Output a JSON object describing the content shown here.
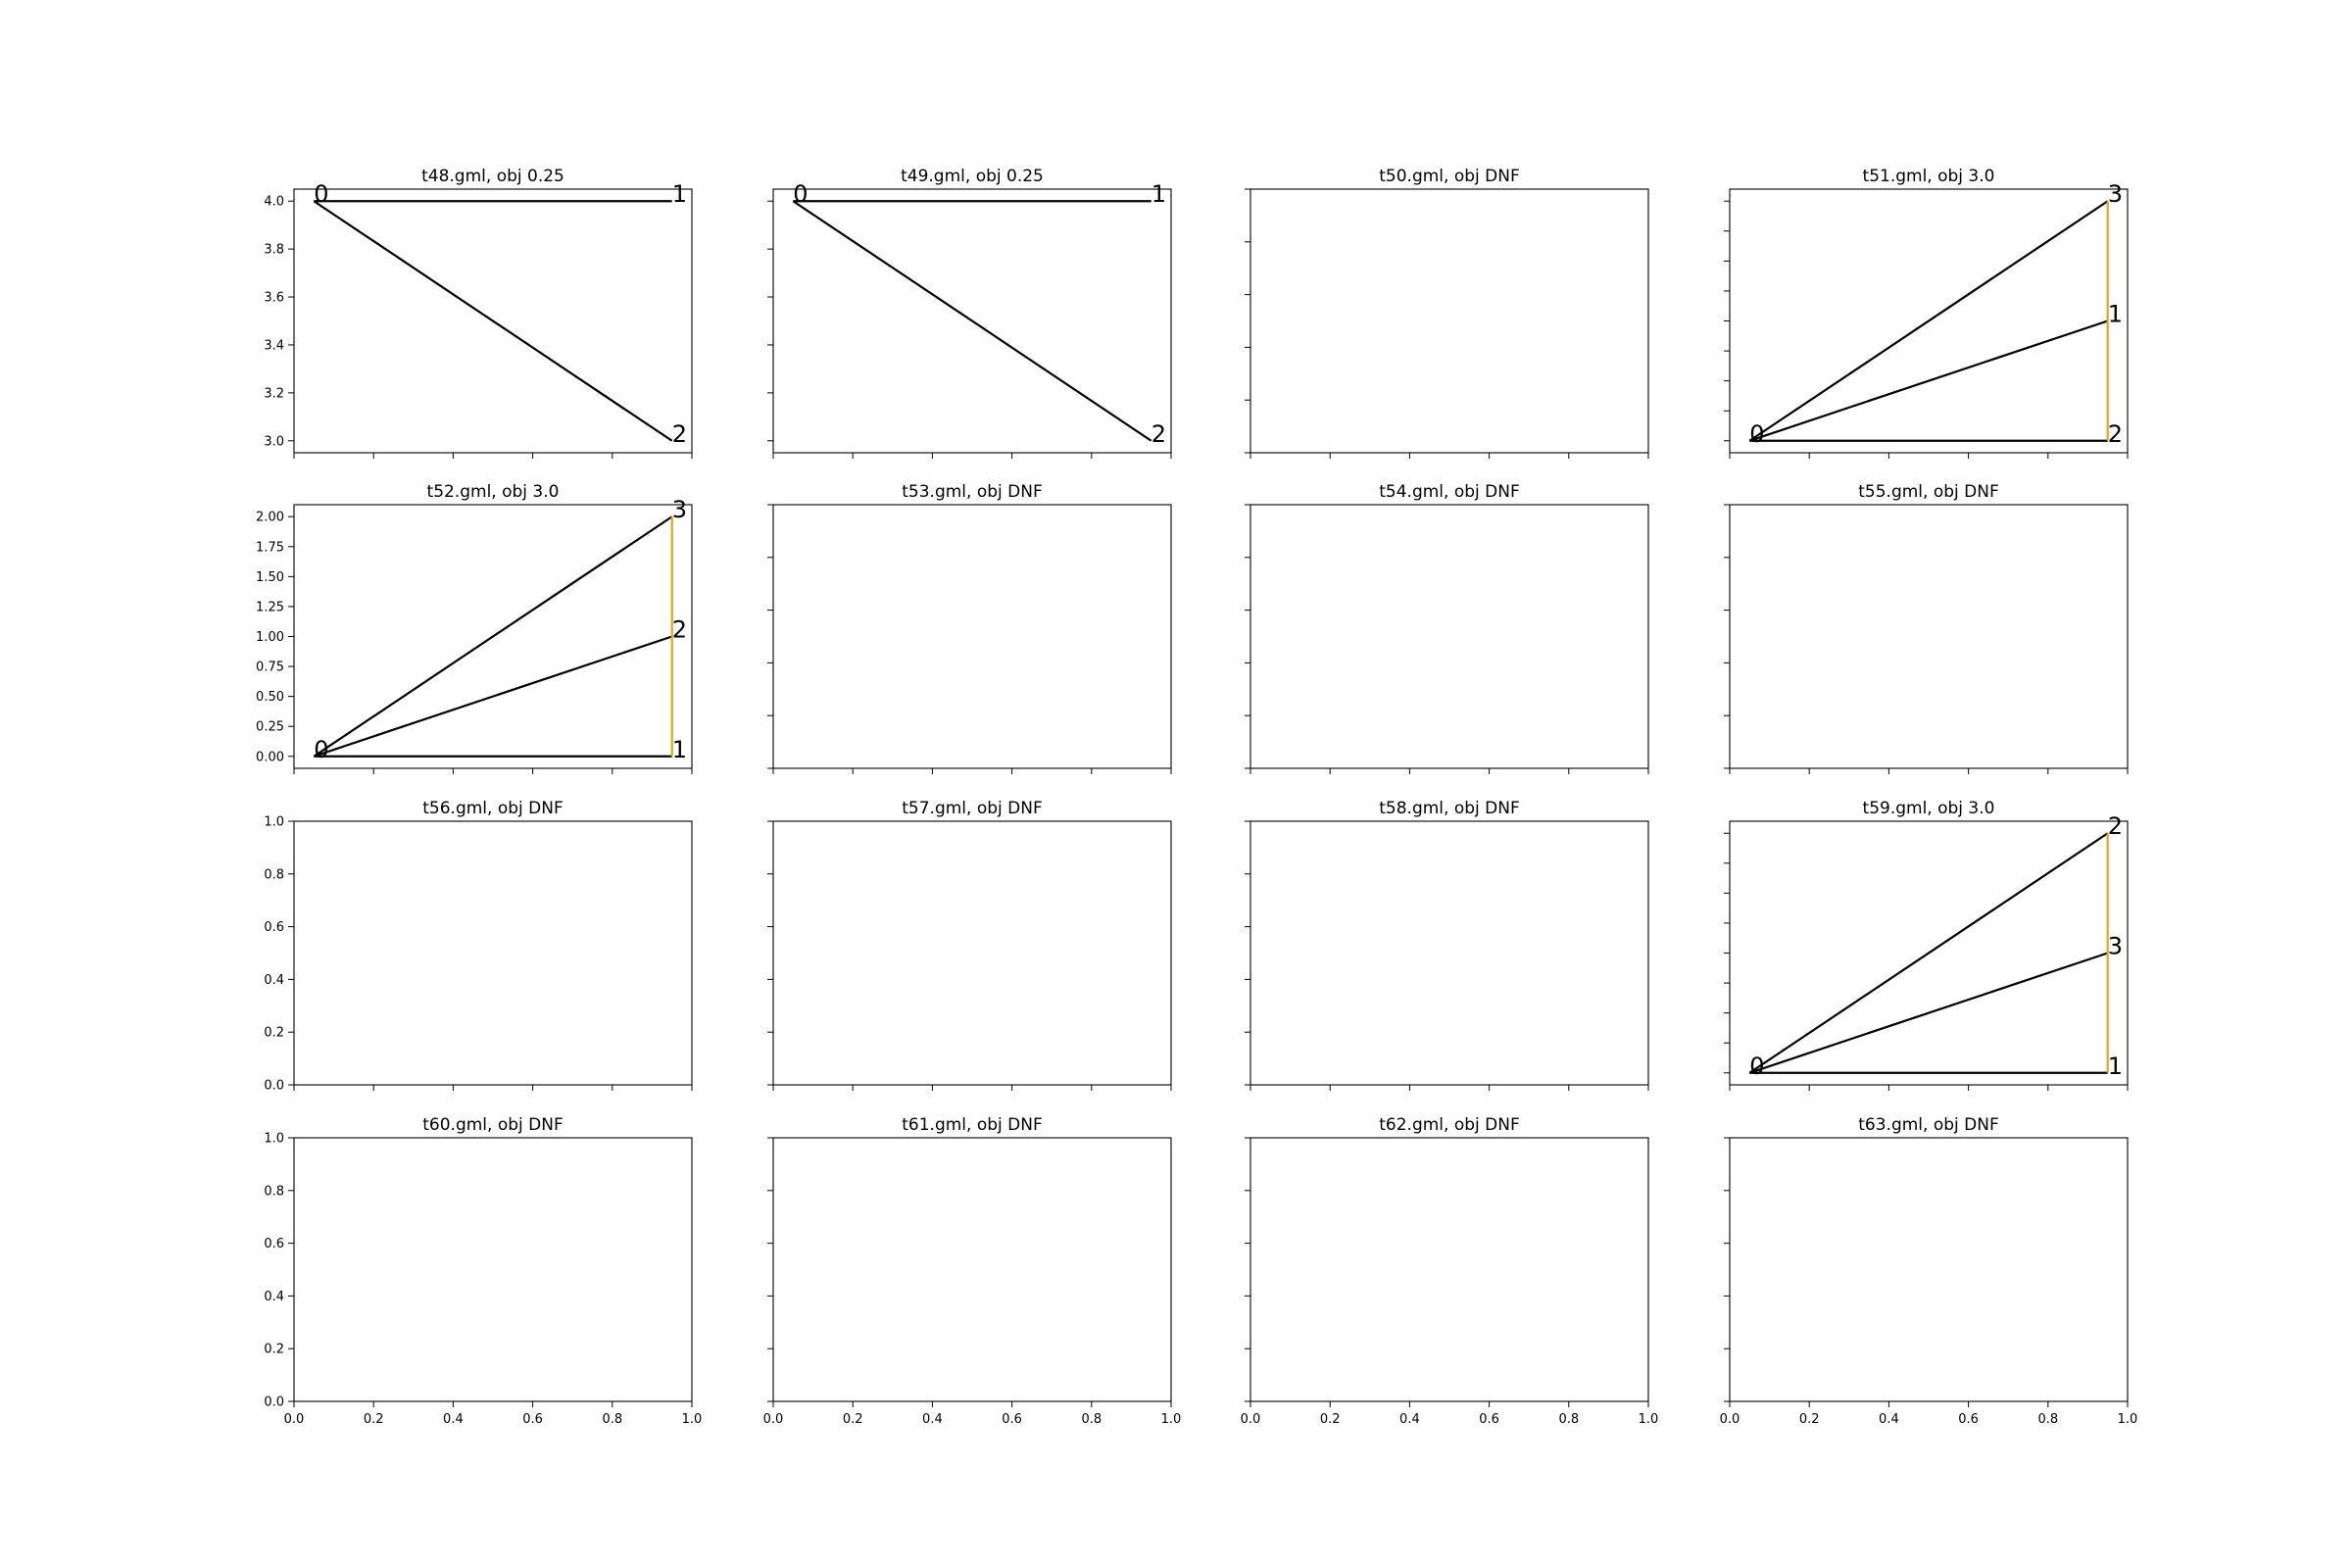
{
  "colors": {
    "edge": "#000000",
    "highlight": "#e8a317",
    "background": "#ffffff"
  },
  "chart_data": [
    {
      "type": "line",
      "title": "t48.gml, obj 0.25",
      "xlim": [
        0,
        1
      ],
      "ylim": [
        2.95,
        4.05
      ],
      "xticks": [
        "0.0",
        "0.2",
        "0.4",
        "0.6",
        "0.8",
        "1.0"
      ],
      "show_xticklabels": false,
      "yticks": [
        "3.0",
        "3.2",
        "3.4",
        "3.6",
        "3.8",
        "4.0"
      ],
      "show_yticklabels": true,
      "nodes": [
        {
          "label": "0",
          "x": 0.05,
          "y": 4.0
        },
        {
          "label": "1",
          "x": 0.95,
          "y": 4.0
        },
        {
          "label": "2",
          "x": 0.95,
          "y": 3.0
        }
      ],
      "edges": [
        {
          "from": 0,
          "to": 1,
          "highlight": false
        },
        {
          "from": 0,
          "to": 2,
          "highlight": false
        }
      ]
    },
    {
      "type": "line",
      "title": "t49.gml, obj 0.25",
      "xlim": [
        0,
        1
      ],
      "ylim": [
        2.95,
        4.05
      ],
      "xticks": [
        "0.0",
        "0.2",
        "0.4",
        "0.6",
        "0.8",
        "1.0"
      ],
      "show_xticklabels": false,
      "yticks": [
        "3.0",
        "3.2",
        "3.4",
        "3.6",
        "3.8",
        "4.0"
      ],
      "show_yticklabels": false,
      "nodes": [
        {
          "label": "0",
          "x": 0.05,
          "y": 4.0
        },
        {
          "label": "1",
          "x": 0.95,
          "y": 4.0
        },
        {
          "label": "2",
          "x": 0.95,
          "y": 3.0
        }
      ],
      "edges": [
        {
          "from": 0,
          "to": 1,
          "highlight": false
        },
        {
          "from": 0,
          "to": 2,
          "highlight": false
        }
      ]
    },
    {
      "type": "line",
      "title": "t50.gml, obj DNF",
      "xlim": [
        0,
        1
      ],
      "ylim": [
        0,
        1
      ],
      "xticks": [
        "0.0",
        "0.2",
        "0.4",
        "0.6",
        "0.8",
        "1.0"
      ],
      "show_xticklabels": false,
      "yticks": [
        "0.0",
        "0.2",
        "0.4",
        "0.6",
        "0.8",
        "1.0"
      ],
      "show_yticklabels": false,
      "nodes": [],
      "edges": []
    },
    {
      "type": "line",
      "title": "t51.gml, obj 3.0",
      "xlim": [
        0,
        1
      ],
      "ylim": [
        -0.1,
        2.1
      ],
      "xticks": [
        "0.0",
        "0.2",
        "0.4",
        "0.6",
        "0.8",
        "1.0"
      ],
      "show_xticklabels": false,
      "yticks": [
        "0.00",
        "0.25",
        "0.50",
        "0.75",
        "1.00",
        "1.25",
        "1.50",
        "1.75",
        "2.00"
      ],
      "show_yticklabels": false,
      "nodes": [
        {
          "label": "0",
          "x": 0.05,
          "y": 0
        },
        {
          "label": "1",
          "x": 0.95,
          "y": 1
        },
        {
          "label": "2",
          "x": 0.95,
          "y": 0
        },
        {
          "label": "3",
          "x": 0.95,
          "y": 2
        }
      ],
      "edges": [
        {
          "from": 0,
          "to": 1,
          "highlight": false
        },
        {
          "from": 0,
          "to": 2,
          "highlight": false
        },
        {
          "from": 0,
          "to": 3,
          "highlight": false
        },
        {
          "from": 2,
          "to": 3,
          "highlight": true
        }
      ]
    },
    {
      "type": "line",
      "title": "t52.gml, obj 3.0",
      "xlim": [
        0,
        1
      ],
      "ylim": [
        -0.1,
        2.1
      ],
      "xticks": [
        "0.0",
        "0.2",
        "0.4",
        "0.6",
        "0.8",
        "1.0"
      ],
      "show_xticklabels": false,
      "yticks": [
        "0.00",
        "0.25",
        "0.50",
        "0.75",
        "1.00",
        "1.25",
        "1.50",
        "1.75",
        "2.00"
      ],
      "show_yticklabels": true,
      "nodes": [
        {
          "label": "0",
          "x": 0.05,
          "y": 0
        },
        {
          "label": "1",
          "x": 0.95,
          "y": 0
        },
        {
          "label": "2",
          "x": 0.95,
          "y": 1
        },
        {
          "label": "3",
          "x": 0.95,
          "y": 2
        }
      ],
      "edges": [
        {
          "from": 0,
          "to": 1,
          "highlight": false
        },
        {
          "from": 0,
          "to": 2,
          "highlight": false
        },
        {
          "from": 0,
          "to": 3,
          "highlight": false
        },
        {
          "from": 1,
          "to": 3,
          "highlight": true
        }
      ]
    },
    {
      "type": "line",
      "title": "t53.gml, obj DNF",
      "xlim": [
        0,
        1
      ],
      "ylim": [
        0,
        1
      ],
      "xticks": [
        "0.0",
        "0.2",
        "0.4",
        "0.6",
        "0.8",
        "1.0"
      ],
      "show_xticklabels": false,
      "yticks": [
        "0.0",
        "0.2",
        "0.4",
        "0.6",
        "0.8",
        "1.0"
      ],
      "show_yticklabels": false,
      "nodes": [],
      "edges": []
    },
    {
      "type": "line",
      "title": "t54.gml, obj DNF",
      "xlim": [
        0,
        1
      ],
      "ylim": [
        0,
        1
      ],
      "xticks": [
        "0.0",
        "0.2",
        "0.4",
        "0.6",
        "0.8",
        "1.0"
      ],
      "show_xticklabels": false,
      "yticks": [
        "0.0",
        "0.2",
        "0.4",
        "0.6",
        "0.8",
        "1.0"
      ],
      "show_yticklabels": false,
      "nodes": [],
      "edges": []
    },
    {
      "type": "line",
      "title": "t55.gml, obj DNF",
      "xlim": [
        0,
        1
      ],
      "ylim": [
        0,
        1
      ],
      "xticks": [
        "0.0",
        "0.2",
        "0.4",
        "0.6",
        "0.8",
        "1.0"
      ],
      "show_xticklabels": false,
      "yticks": [
        "0.0",
        "0.2",
        "0.4",
        "0.6",
        "0.8",
        "1.0"
      ],
      "show_yticklabels": false,
      "nodes": [],
      "edges": []
    },
    {
      "type": "line",
      "title": "t56.gml, obj DNF",
      "xlim": [
        0,
        1
      ],
      "ylim": [
        0,
        1
      ],
      "xticks": [
        "0.0",
        "0.2",
        "0.4",
        "0.6",
        "0.8",
        "1.0"
      ],
      "show_xticklabels": false,
      "yticks": [
        "0.0",
        "0.2",
        "0.4",
        "0.6",
        "0.8",
        "1.0"
      ],
      "show_yticklabels": true,
      "nodes": [],
      "edges": []
    },
    {
      "type": "line",
      "title": "t57.gml, obj DNF",
      "xlim": [
        0,
        1
      ],
      "ylim": [
        0,
        1
      ],
      "xticks": [
        "0.0",
        "0.2",
        "0.4",
        "0.6",
        "0.8",
        "1.0"
      ],
      "show_xticklabels": false,
      "yticks": [
        "0.0",
        "0.2",
        "0.4",
        "0.6",
        "0.8",
        "1.0"
      ],
      "show_yticklabels": false,
      "nodes": [],
      "edges": []
    },
    {
      "type": "line",
      "title": "t58.gml, obj DNF",
      "xlim": [
        0,
        1
      ],
      "ylim": [
        0,
        1
      ],
      "xticks": [
        "0.0",
        "0.2",
        "0.4",
        "0.6",
        "0.8",
        "1.0"
      ],
      "show_xticklabels": false,
      "yticks": [
        "0.0",
        "0.2",
        "0.4",
        "0.6",
        "0.8",
        "1.0"
      ],
      "show_yticklabels": false,
      "nodes": [],
      "edges": []
    },
    {
      "type": "line",
      "title": "t59.gml, obj 3.0",
      "xlim": [
        0,
        1
      ],
      "ylim": [
        -0.1,
        2.1
      ],
      "xticks": [
        "0.0",
        "0.2",
        "0.4",
        "0.6",
        "0.8",
        "1.0"
      ],
      "show_xticklabels": false,
      "yticks": [
        "0.00",
        "0.25",
        "0.50",
        "0.75",
        "1.00",
        "1.25",
        "1.50",
        "1.75",
        "2.00"
      ],
      "show_yticklabels": false,
      "nodes": [
        {
          "label": "0",
          "x": 0.05,
          "y": 0
        },
        {
          "label": "1",
          "x": 0.95,
          "y": 0
        },
        {
          "label": "2",
          "x": 0.95,
          "y": 2
        },
        {
          "label": "3",
          "x": 0.95,
          "y": 1
        }
      ],
      "edges": [
        {
          "from": 0,
          "to": 1,
          "highlight": false
        },
        {
          "from": 0,
          "to": 2,
          "highlight": false
        },
        {
          "from": 0,
          "to": 3,
          "highlight": false
        },
        {
          "from": 1,
          "to": 2,
          "highlight": true
        }
      ]
    },
    {
      "type": "line",
      "title": "t60.gml, obj DNF",
      "xlim": [
        0,
        1
      ],
      "ylim": [
        0,
        1
      ],
      "xticks": [
        "0.0",
        "0.2",
        "0.4",
        "0.6",
        "0.8",
        "1.0"
      ],
      "show_xticklabels": true,
      "yticks": [
        "0.0",
        "0.2",
        "0.4",
        "0.6",
        "0.8",
        "1.0"
      ],
      "show_yticklabels": true,
      "nodes": [],
      "edges": []
    },
    {
      "type": "line",
      "title": "t61.gml, obj DNF",
      "xlim": [
        0,
        1
      ],
      "ylim": [
        0,
        1
      ],
      "xticks": [
        "0.0",
        "0.2",
        "0.4",
        "0.6",
        "0.8",
        "1.0"
      ],
      "show_xticklabels": true,
      "yticks": [
        "0.0",
        "0.2",
        "0.4",
        "0.6",
        "0.8",
        "1.0"
      ],
      "show_yticklabels": false,
      "nodes": [],
      "edges": []
    },
    {
      "type": "line",
      "title": "t62.gml, obj DNF",
      "xlim": [
        0,
        1
      ],
      "ylim": [
        0,
        1
      ],
      "xticks": [
        "0.0",
        "0.2",
        "0.4",
        "0.6",
        "0.8",
        "1.0"
      ],
      "show_xticklabels": true,
      "yticks": [
        "0.0",
        "0.2",
        "0.4",
        "0.6",
        "0.8",
        "1.0"
      ],
      "show_yticklabels": false,
      "nodes": [],
      "edges": []
    },
    {
      "type": "line",
      "title": "t63.gml, obj DNF",
      "xlim": [
        0,
        1
      ],
      "ylim": [
        0,
        1
      ],
      "xticks": [
        "0.0",
        "0.2",
        "0.4",
        "0.6",
        "0.8",
        "1.0"
      ],
      "show_xticklabels": true,
      "yticks": [
        "0.0",
        "0.2",
        "0.4",
        "0.6",
        "0.8",
        "1.0"
      ],
      "show_yticklabels": false,
      "nodes": [],
      "edges": []
    }
  ]
}
